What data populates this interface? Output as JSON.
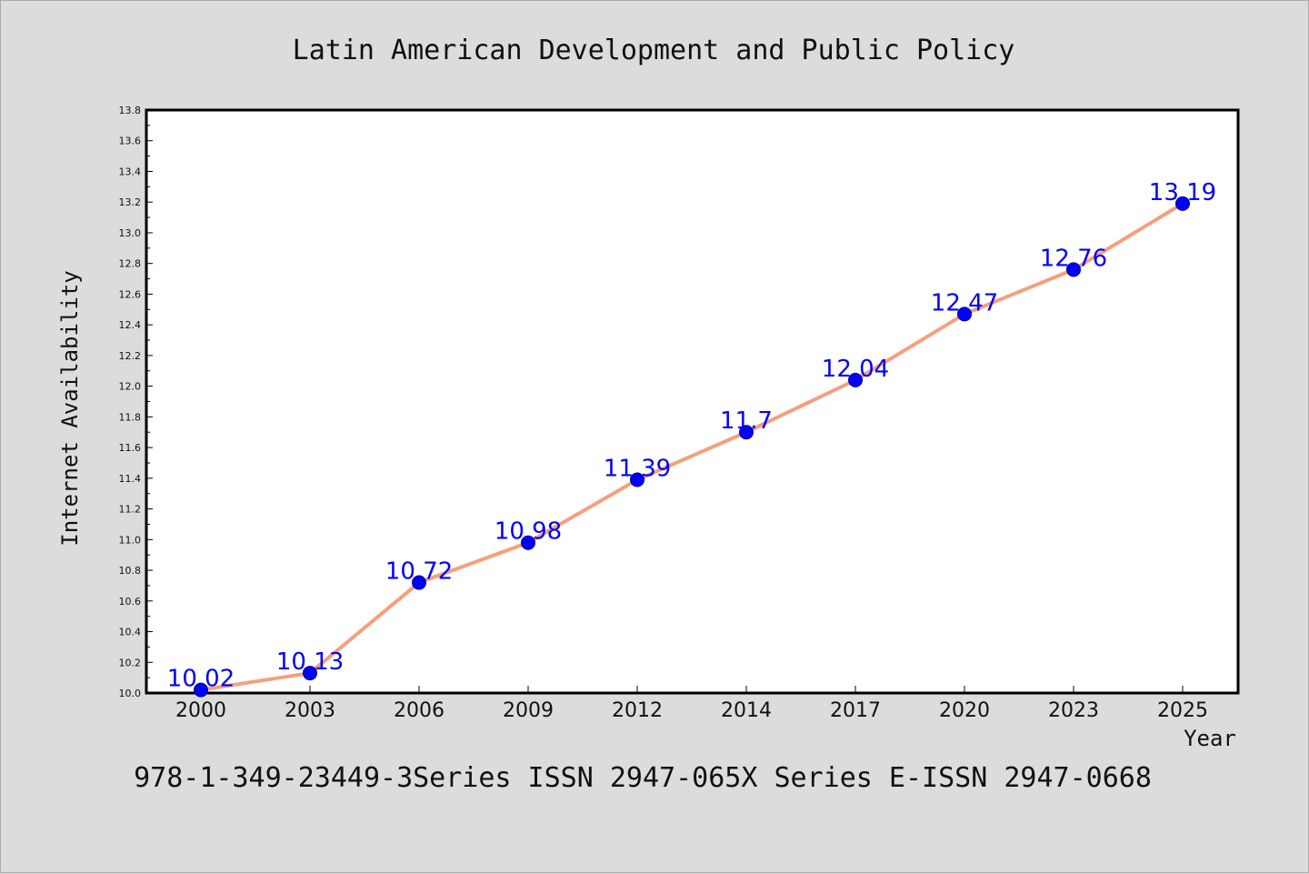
{
  "chart_data": {
    "type": "line",
    "title": "Latin American Development and Public Policy",
    "xlabel": "Year",
    "ylabel": "Internet Availability",
    "categories": [
      "2000",
      "2003",
      "2006",
      "2009",
      "2012",
      "2014",
      "2017",
      "2020",
      "2023",
      "2025"
    ],
    "series": [
      {
        "values": [
          10.02,
          10.13,
          10.72,
          10.98,
          11.39,
          11.7,
          12.04,
          12.47,
          12.76,
          13.19
        ],
        "data_labels": [
          "10.02",
          "10.13",
          "10.72",
          "10.98",
          "11.39",
          "11.7",
          "12.04",
          "12.47",
          "12.76",
          "13.19"
        ],
        "line_color": "#f4a07c",
        "marker_color": "#0000ff"
      }
    ],
    "ylim": [
      10.0,
      13.8
    ],
    "yticks": [
      "10.0",
      "10.2",
      "10.4",
      "10.6",
      "10.8",
      "11.0",
      "11.2",
      "11.4",
      "11.6",
      "11.8",
      "12.0",
      "12.2",
      "12.4",
      "12.6",
      "12.8",
      "13.0",
      "13.2",
      "13.4",
      "13.6",
      "13.8"
    ],
    "grid": false,
    "legend": "none",
    "label_color": "#0000ff"
  },
  "footer": {
    "text": "978-1-349-23449-3Series ISSN 2947-065X Series E-ISSN 2947-0668"
  },
  "colors": {
    "background": "#dcdcdc",
    "plot_background": "#ffffff"
  }
}
